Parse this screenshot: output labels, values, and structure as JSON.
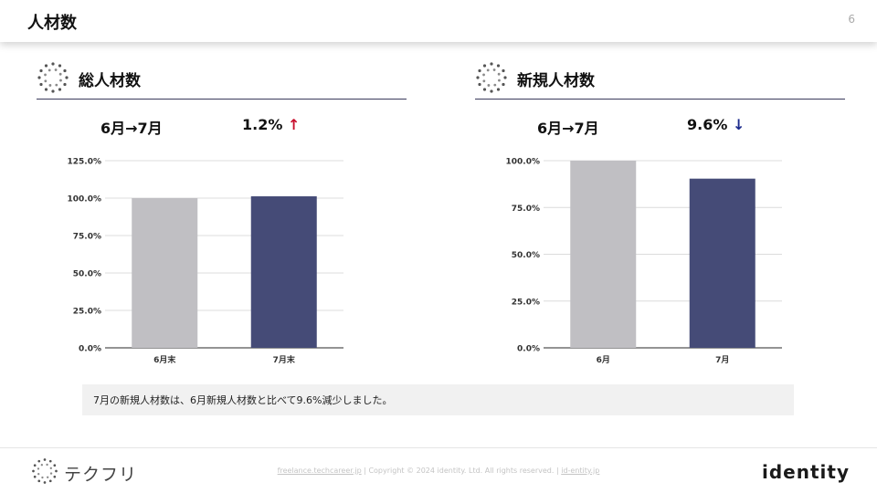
{
  "header": {
    "title": "人材数",
    "page_number": "6"
  },
  "sections": [
    {
      "title": "総人材数",
      "period": "6月→7月",
      "change": "1.2%",
      "arrow": "↑",
      "arrow_color": "#c8102e"
    },
    {
      "title": "新規人材数",
      "period": "6月→7月",
      "change": "9.6%",
      "arrow": "↓",
      "arrow_color": "#1c2a8c"
    }
  ],
  "chart_data": [
    {
      "type": "bar",
      "categories": [
        "6月末",
        "7月末"
      ],
      "values": [
        100.0,
        101.2
      ],
      "colors": [
        "#c0bfc3",
        "#454b77"
      ],
      "yticks": [
        "0.0%",
        "25.0%",
        "50.0%",
        "75.0%",
        "100.0%",
        "125.0%"
      ],
      "ylim": [
        0,
        125
      ],
      "grid": true
    },
    {
      "type": "bar",
      "categories": [
        "6月",
        "7月"
      ],
      "values": [
        100.0,
        90.4
      ],
      "colors": [
        "#c0bfc3",
        "#454b77"
      ],
      "yticks": [
        "0.0%",
        "25.0%",
        "50.0%",
        "75.0%",
        "100.0%"
      ],
      "ylim": [
        0,
        100
      ],
      "grid": true
    }
  ],
  "note": "7月の新規人材数は、6月新規人材数と比べて9.6%減少しました。",
  "footer": {
    "logo_text": "テクフリ",
    "link1": "freelance.techcareer.jp",
    "sep": "|",
    "copyright": "Copyright © 2024 identity. Ltd. All rights reserved.",
    "link2": "id-entity.jp",
    "brand": "identity"
  }
}
